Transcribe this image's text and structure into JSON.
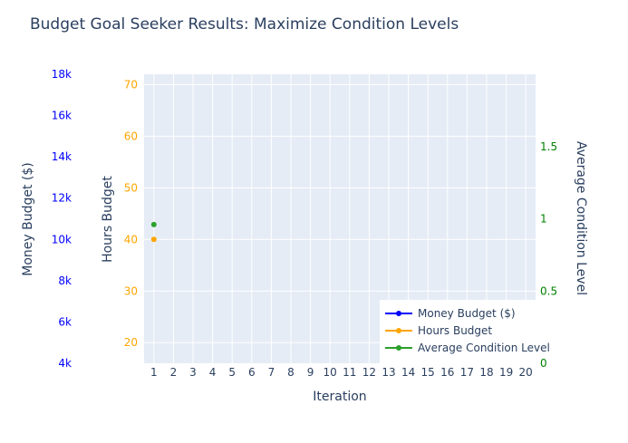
{
  "chart_data": {
    "type": "line",
    "title": "Budget Goal Seeker Results: Maximize Condition Levels",
    "xlabel": "Iteration",
    "x_ticks": [
      1,
      2,
      3,
      4,
      5,
      6,
      7,
      8,
      9,
      10,
      11,
      12,
      13,
      14,
      15,
      16,
      17,
      18,
      19,
      20
    ],
    "xlim": [
      0.5,
      20.5
    ],
    "axes": {
      "money": {
        "label": "Money Budget ($)",
        "ylim": [
          4000,
          18000
        ],
        "ticks": [
          4000,
          6000,
          8000,
          10000,
          12000,
          14000,
          16000,
          18000
        ],
        "tick_labels": [
          "4k",
          "6k",
          "8k",
          "10k",
          "12k",
          "14k",
          "16k",
          "18k"
        ],
        "color": "#0000ff"
      },
      "hours": {
        "label": "Hours Budget",
        "ylim": [
          16,
          72
        ],
        "ticks": [
          20,
          30,
          40,
          50,
          60,
          70
        ],
        "tick_labels": [
          "20",
          "30",
          "40",
          "50",
          "60",
          "70"
        ],
        "color": "#ffa500"
      },
      "condition": {
        "label": "Average Condition Level",
        "ylim": [
          0.0,
          2.0
        ],
        "ticks": [
          0.0,
          0.5,
          1.0,
          1.5
        ],
        "tick_labels": [
          "0",
          "0.5",
          "1",
          "1.5"
        ],
        "color": "#008000"
      }
    },
    "series": [
      {
        "name": "Money Budget ($)",
        "axis": "money",
        "color": "#0000ff",
        "x": [],
        "values": []
      },
      {
        "name": "Hours Budget",
        "axis": "hours",
        "color": "#ffa500",
        "x": [
          1
        ],
        "values": [
          40
        ]
      },
      {
        "name": "Average Condition Level",
        "axis": "condition",
        "color": "#2ca02c",
        "x": [
          1
        ],
        "values": [
          0.96
        ]
      }
    ],
    "grid": true,
    "legend_position": "bottom-right"
  }
}
